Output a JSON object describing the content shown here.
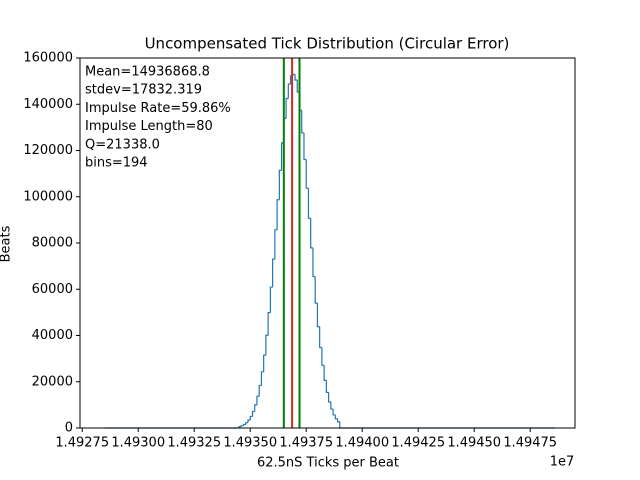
{
  "chart_data": {
    "type": "histogram",
    "title": "Uncompensated Tick Distribution (Circular Error)",
    "xlabel": "62.5nS Ticks per Beat",
    "ylabel": "Beats",
    "x_offset_label": "1e7",
    "annotations": [
      "Mean=14936868.8",
      "stdev=17832.319",
      "Impulse Rate=59.86%",
      "Impulse Length=80",
      "Q=21338.0",
      "bins=194"
    ],
    "color": "#1f77b4",
    "bins": [
      1.49285,
      1.49345,
      1.49346,
      1.49347,
      1.49348,
      1.49349,
      1.4935,
      1.49351,
      1.49352,
      1.49353,
      1.49354,
      1.49355,
      1.49356,
      1.49357,
      1.49358,
      1.49359,
      1.4936,
      1.49361,
      1.49362,
      1.49363,
      1.49364,
      1.49365,
      1.49366,
      1.49367,
      1.49368,
      1.49369,
      1.4937,
      1.49371,
      1.49372,
      1.49373,
      1.49374,
      1.49375,
      1.49376,
      1.49377,
      1.49378,
      1.49379,
      1.4938,
      1.49381,
      1.49382,
      1.49383,
      1.49384,
      1.49385,
      1.49386,
      1.49387,
      1.49388,
      1.49389,
      1.4939,
      1.49486
    ],
    "values": [
      0,
      600,
      1000,
      1500,
      2300,
      3400,
      5000,
      7100,
      10000,
      13700,
      18400,
      24300,
      31500,
      40100,
      49900,
      60900,
      73000,
      85700,
      98700,
      111400,
      123300,
      133900,
      142500,
      148700,
      152300,
      152900,
      150500,
      145300,
      137400,
      127600,
      116100,
      103700,
      90700,
      77900,
      65500,
      54000,
      43800,
      34800,
      27100,
      20600,
      15400,
      11300,
      8200,
      5700,
      4000,
      2700,
      0
    ],
    "vlines": [
      {
        "x": 1.49365,
        "color": "#008000"
      },
      {
        "x": 1.4936869,
        "color": "#d62728"
      },
      {
        "x": 1.49372,
        "color": "#008000"
      }
    ],
    "xlim": [
      1.49274,
      1.49495
    ],
    "xticks": [
      1.49275,
      {
        "value": 1.493,
        "label": "1.49300"
      },
      1.49325,
      {
        "value": 1.4935,
        "label": "1.49350"
      },
      1.49375,
      {
        "value": 1.494,
        "label": "1.49400"
      },
      1.49425,
      {
        "value": 1.4945,
        "label": "1.49450"
      },
      1.49475
    ],
    "ylim": [
      0,
      160000
    ],
    "yticks": [
      0,
      20000,
      40000,
      60000,
      80000,
      100000,
      120000,
      140000,
      160000
    ],
    "grid": false
  }
}
